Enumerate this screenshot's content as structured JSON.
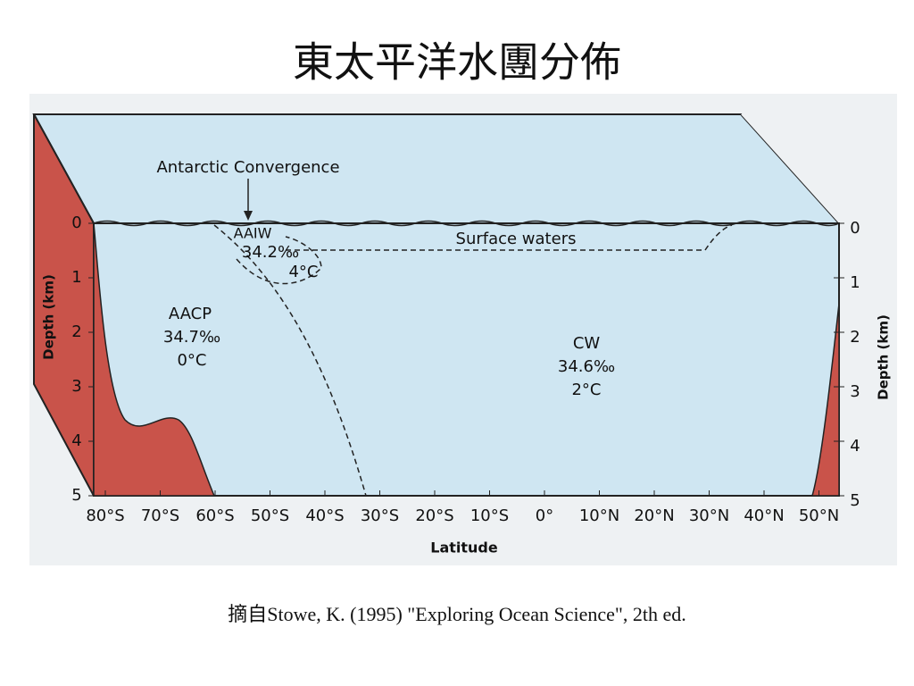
{
  "title": "東太平洋水團分佈",
  "diagram": {
    "annotation": "Antarctic Convergence",
    "water_masses": [
      {
        "name": "AAIW",
        "salinity": "34.2‰",
        "temperature": "4°C"
      },
      {
        "name": "Surface waters"
      },
      {
        "name": "AACP",
        "salinity": "34.7‰",
        "temperature": "0°C"
      },
      {
        "name": "CW",
        "salinity": "34.6‰",
        "temperature": "2°C"
      }
    ],
    "depth_axis_label": "Depth (km)",
    "depth_ticks": [
      "0",
      "1",
      "2",
      "3",
      "4",
      "5"
    ],
    "latitude_ticks": [
      "80°S",
      "70°S",
      "60°S",
      "50°S",
      "40°S",
      "30°S",
      "20°S",
      "10°S",
      "0°",
      "10°N",
      "20°N",
      "30°N",
      "40°N",
      "50°N"
    ],
    "latitude_axis_label": "Latitude"
  },
  "caption": "摘自Stowe, K. (1995) \"Exploring Ocean Science\", 2th ed."
}
